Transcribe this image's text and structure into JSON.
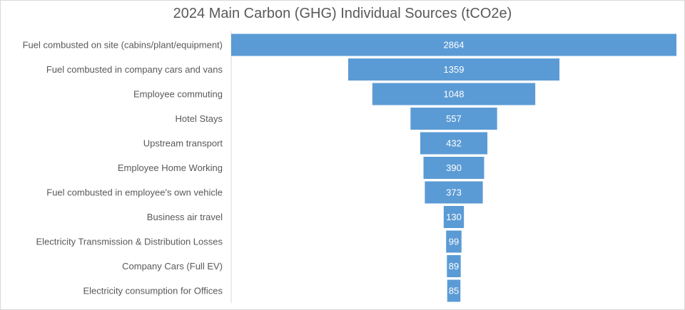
{
  "chart_data": {
    "type": "funnel",
    "title": "2024 Main Carbon (GHG) Individual Sources (tCO2e)",
    "categories": [
      "Fuel combusted on site (cabins/plant/equipment)",
      "Fuel combusted in company cars and vans",
      "Employee commuting",
      "Hotel Stays",
      "Upstream transport",
      "Employee Home Working",
      "Fuel combusted in employee's own vehicle",
      "Business air travel",
      "Electricity Transmission & Distribution Losses",
      "Company Cars (Full EV)",
      "Electricity consumption for Offices"
    ],
    "values": [
      2864,
      1359,
      1048,
      557,
      432,
      390,
      373,
      130,
      99,
      89,
      85
    ],
    "bar_color": "#5B9BD5",
    "label_color": "#FFFFFF",
    "data_labels": true
  }
}
